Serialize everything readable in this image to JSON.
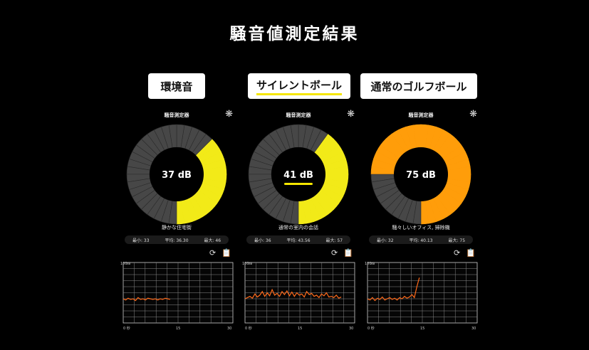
{
  "title": "騒音値測定結果",
  "panels": [
    {
      "label": "環境音",
      "meter_title": "騒音測定器",
      "db_label": "37 dB",
      "db": 37,
      "fill_color": "#f2ea18",
      "highlight": false,
      "description": "静かな住宅街",
      "stats": {
        "min": "最小: 33",
        "avg": "平均: 36.30",
        "max": "最大: 46"
      },
      "graph": {
        "y_top": "100",
        "y_unit": "dB",
        "x_labels": [
          "0 秒",
          "15",
          "30"
        ],
        "trace": [
          40,
          38,
          41,
          39,
          40,
          37,
          42,
          39,
          40,
          38,
          41,
          40,
          39,
          40,
          38,
          40,
          39,
          41,
          40,
          39
        ]
      }
    },
    {
      "label": "サイレントボール",
      "meter_title": "騒音測定器",
      "db_label": "41 dB",
      "db": 41,
      "fill_color": "#f2ea18",
      "highlight": true,
      "description": "通常の室内の会話",
      "stats": {
        "min": "最小: 36",
        "avg": "平均: 43.56",
        "max": "最大: 57"
      },
      "graph": {
        "y_top": "100",
        "y_unit": "dB",
        "x_labels": [
          "0 秒",
          "15",
          "30"
        ],
        "trace": [
          40,
          42,
          44,
          41,
          48,
          43,
          46,
          52,
          44,
          50,
          45,
          55,
          46,
          49,
          44,
          52,
          47,
          53,
          45,
          51,
          44,
          50,
          46,
          48,
          43,
          52,
          47,
          49,
          44,
          46,
          42,
          48,
          45,
          50,
          43,
          44,
          42,
          46,
          41,
          43
        ]
      }
    },
    {
      "label": "通常のゴルフボール",
      "meter_title": "騒音測定器",
      "db_label": "75 dB",
      "db": 75,
      "fill_color": "#ff9d0a",
      "highlight": false,
      "description": "騒々しいオフィス, 掃除機",
      "stats": {
        "min": "最小: 32",
        "avg": "平均: 40.13",
        "max": "最大: 75"
      },
      "graph": {
        "y_top": "100",
        "y_unit": "dB",
        "x_labels": [
          "0 秒",
          "15",
          "30"
        ],
        "trace": [
          40,
          38,
          42,
          37,
          41,
          39,
          43,
          38,
          40,
          42,
          39,
          41,
          38,
          42,
          40,
          44,
          41,
          43,
          47,
          42,
          60,
          75
        ]
      }
    }
  ],
  "icons": {
    "settings": "gear-icon",
    "refresh": "refresh-icon",
    "clipboard": "clipboard-icon"
  }
}
